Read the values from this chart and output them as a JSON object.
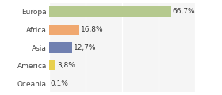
{
  "categories": [
    "Europa",
    "Africa",
    "Asia",
    "America",
    "Oceania"
  ],
  "values": [
    66.7,
    16.8,
    12.7,
    3.8,
    0.1
  ],
  "labels": [
    "66,7%",
    "16,8%",
    "12,7%",
    "3,8%",
    "0,1%"
  ],
  "colors": [
    "#b5c98e",
    "#f0a870",
    "#7080b0",
    "#e8d050",
    "#f5c0a0"
  ],
  "xlim": [
    0,
    80
  ],
  "background_color": "#ffffff",
  "plot_bg": "#f5f5f5",
  "bar_height": 0.6,
  "label_fontsize": 6.5,
  "tick_fontsize": 6.5,
  "grid_color": "#ffffff",
  "grid_lw": 1.0,
  "xticks": [
    0,
    20,
    40,
    60,
    80
  ]
}
